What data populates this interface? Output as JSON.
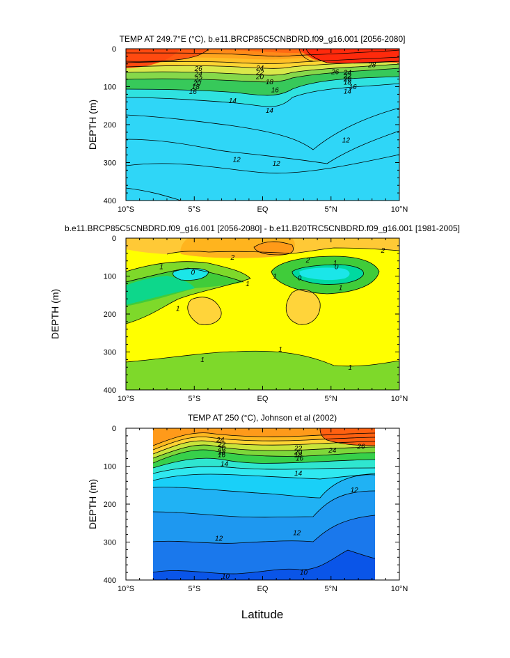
{
  "chart_data": [
    {
      "type": "contour",
      "title": "TEMP AT 249.7°E (°C), b.e11.BRCP85C5CNBDRD.f09_g16.001 [2056-2080]",
      "ylabel": "DEPTH (m)",
      "xlabel": "",
      "x_ticks": [
        "10°S",
        "5°S",
        "EQ",
        "5°N",
        "10°N"
      ],
      "y_ticks": [
        "0",
        "100",
        "200",
        "300",
        "400"
      ],
      "xlim": [
        -10,
        10
      ],
      "ylim": [
        0,
        400
      ],
      "contour_labels": [
        "26",
        "24",
        "22",
        "20",
        "18",
        "16",
        "14",
        "12",
        "28"
      ],
      "label_points": [
        {
          "x": -4.7,
          "y": 52,
          "text": "26"
        },
        {
          "x": -4.7,
          "y": 66,
          "text": "24"
        },
        {
          "x": -4.7,
          "y": 79,
          "text": "22"
        },
        {
          "x": -4.8,
          "y": 90,
          "text": "20"
        },
        {
          "x": -4.9,
          "y": 100,
          "text": "18"
        },
        {
          "x": -5.1,
          "y": 113,
          "text": "16"
        },
        {
          "x": -2.2,
          "y": 137,
          "text": "14"
        },
        {
          "x": -1.9,
          "y": 292,
          "text": "12"
        },
        {
          "x": -0.2,
          "y": 50,
          "text": "24"
        },
        {
          "x": -0.2,
          "y": 62,
          "text": "22"
        },
        {
          "x": -0.2,
          "y": 73,
          "text": "20"
        },
        {
          "x": 0.5,
          "y": 87,
          "text": "18"
        },
        {
          "x": 0.9,
          "y": 108,
          "text": "16"
        },
        {
          "x": 0.5,
          "y": 162,
          "text": "14"
        },
        {
          "x": 1.0,
          "y": 302,
          "text": "12"
        },
        {
          "x": 5.3,
          "y": 61,
          "text": "26"
        },
        {
          "x": 6.2,
          "y": 62,
          "text": "24"
        },
        {
          "x": 6.2,
          "y": 72,
          "text": "22"
        },
        {
          "x": 6.2,
          "y": 80,
          "text": "20"
        },
        {
          "x": 6.2,
          "y": 88,
          "text": "18"
        },
        {
          "x": 6.6,
          "y": 100,
          "text": "16"
        },
        {
          "x": 6.2,
          "y": 112,
          "text": "14"
        },
        {
          "x": 8.0,
          "y": 42,
          "text": "28"
        },
        {
          "x": 6.1,
          "y": 240,
          "text": "12"
        }
      ]
    },
    {
      "type": "contour",
      "title": "b.e11.BRCP85C5CNBDRD.f09_g16.001 [2056-2080] - b.e11.B20TRC5CNBDRD.f09_g16.001 [1981-2005]",
      "ylabel": "DEPTH (m)",
      "xlabel": "",
      "x_ticks": [
        "10°S",
        "5°S",
        "EQ",
        "5°N",
        "10°N"
      ],
      "y_ticks": [
        "0",
        "100",
        "200",
        "300",
        "400"
      ],
      "xlim": [
        -10,
        10
      ],
      "ylim": [
        0,
        400
      ],
      "contour_labels": [
        "2",
        "1",
        "0"
      ],
      "label_points": [
        {
          "x": -2.2,
          "y": 50,
          "text": "2"
        },
        {
          "x": 3.3,
          "y": 58,
          "text": "2"
        },
        {
          "x": 8.8,
          "y": 32,
          "text": "2"
        },
        {
          "x": -7.4,
          "y": 75,
          "text": "1"
        },
        {
          "x": -5.1,
          "y": 90,
          "text": "0"
        },
        {
          "x": -1.1,
          "y": 120,
          "text": "1"
        },
        {
          "x": -6.2,
          "y": 185,
          "text": "1"
        },
        {
          "x": -4.4,
          "y": 320,
          "text": "1"
        },
        {
          "x": 1.3,
          "y": 293,
          "text": "1"
        },
        {
          "x": 6.4,
          "y": 340,
          "text": "1"
        },
        {
          "x": 2.7,
          "y": 105,
          "text": "0"
        },
        {
          "x": 5.4,
          "y": 75,
          "text": "0"
        },
        {
          "x": 5.7,
          "y": 130,
          "text": "1"
        },
        {
          "x": 0.9,
          "y": 100,
          "text": "1"
        },
        {
          "x": 5.3,
          "y": 65,
          "text": "1"
        }
      ]
    },
    {
      "type": "contour",
      "title": "TEMP AT 250 (°C), Johnson et al (2002)",
      "ylabel": "DEPTH (m)",
      "xlabel": "Latitude",
      "x_ticks": [
        "10°S",
        "5°S",
        "EQ",
        "5°N",
        "10°N"
      ],
      "y_ticks": [
        "0",
        "100",
        "200",
        "300",
        "400"
      ],
      "xlim": [
        -10,
        10
      ],
      "ylim": [
        0,
        400
      ],
      "data_xrange": [
        -8,
        8
      ],
      "contour_labels": [
        "24",
        "22",
        "20",
        "18",
        "16",
        "14",
        "12",
        "10",
        "26"
      ],
      "label_points": [
        {
          "x": -3.1,
          "y": 30,
          "text": "24"
        },
        {
          "x": -3.0,
          "y": 42,
          "text": "22"
        },
        {
          "x": -3.0,
          "y": 52,
          "text": "20"
        },
        {
          "x": -3.0,
          "y": 62,
          "text": "18"
        },
        {
          "x": -3.0,
          "y": 70,
          "text": "16"
        },
        {
          "x": -2.8,
          "y": 94,
          "text": "14"
        },
        {
          "x": -3.2,
          "y": 290,
          "text": "12"
        },
        {
          "x": -2.7,
          "y": 390,
          "text": "10"
        },
        {
          "x": 2.6,
          "y": 52,
          "text": "22"
        },
        {
          "x": 2.6,
          "y": 62,
          "text": "20"
        },
        {
          "x": 2.6,
          "y": 70,
          "text": "18"
        },
        {
          "x": 2.7,
          "y": 79,
          "text": "16"
        },
        {
          "x": 2.6,
          "y": 118,
          "text": "14"
        },
        {
          "x": 2.5,
          "y": 275,
          "text": "12"
        },
        {
          "x": 3.0,
          "y": 380,
          "text": "10"
        },
        {
          "x": 5.1,
          "y": 58,
          "text": "24"
        },
        {
          "x": 7.2,
          "y": 48,
          "text": "26"
        },
        {
          "x": 6.7,
          "y": 162,
          "text": "12"
        }
      ]
    }
  ]
}
